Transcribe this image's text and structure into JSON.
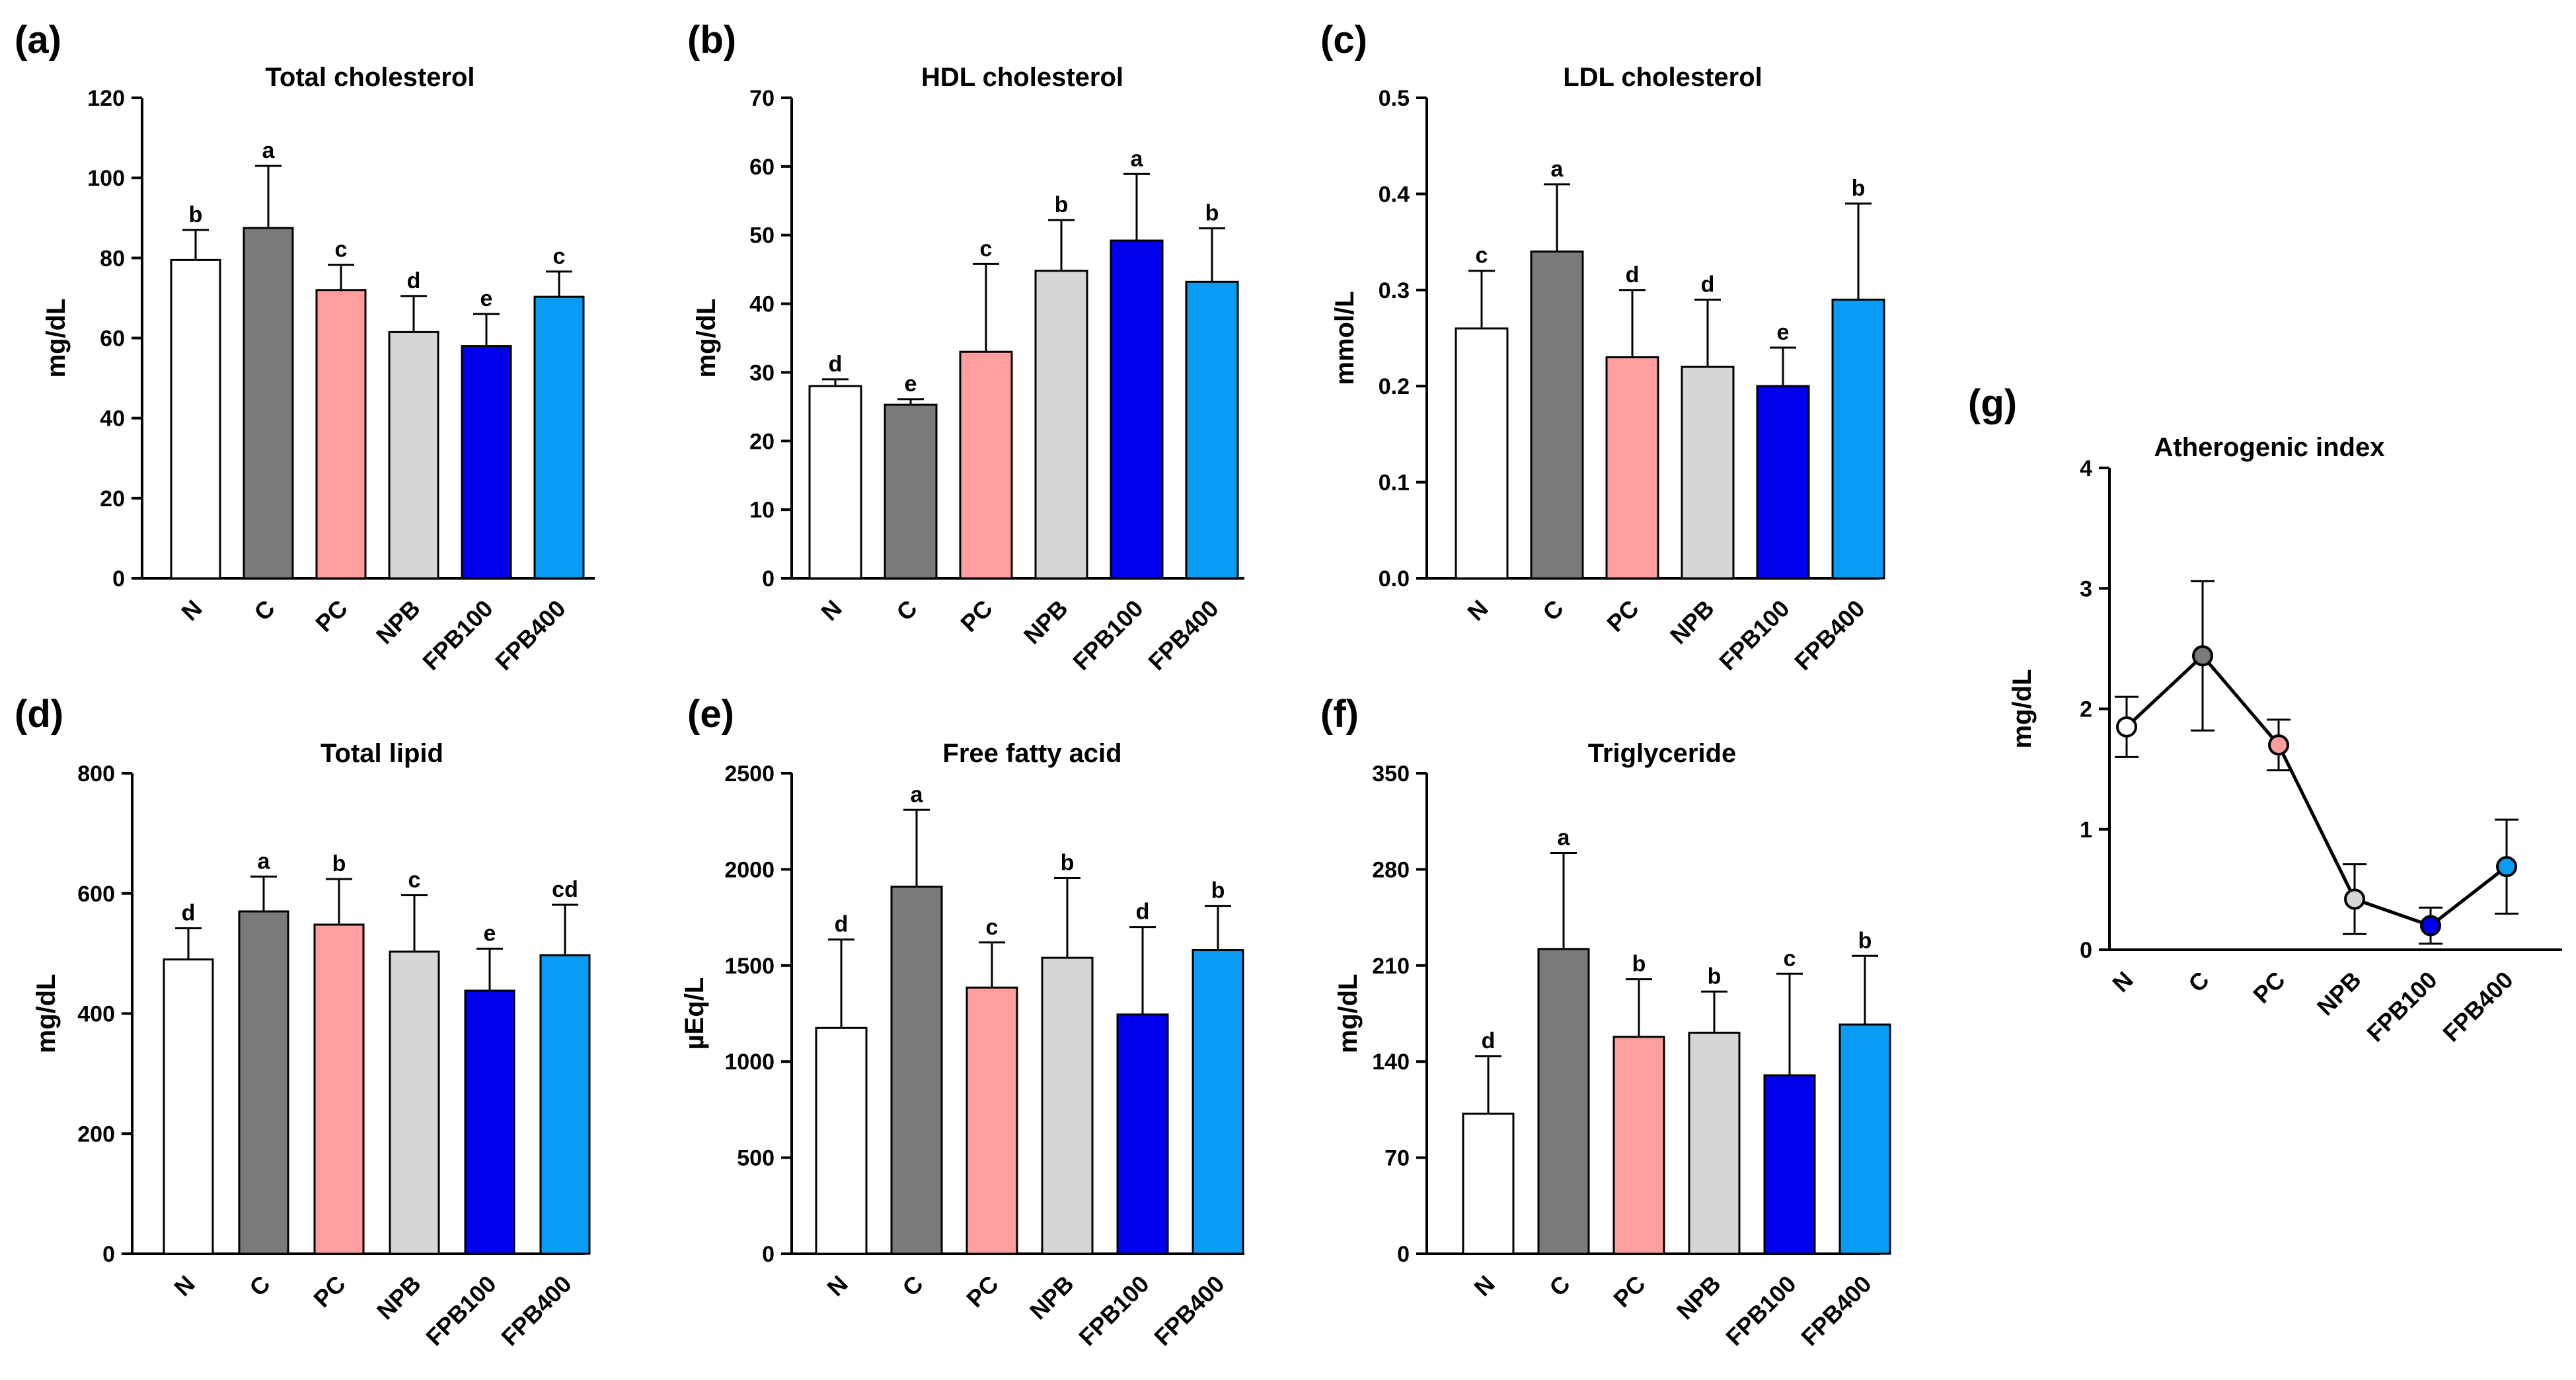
{
  "chart_data": [
    {
      "panel": "(a)",
      "type": "bar",
      "title": "Total cholesterol",
      "ylabel": "mg/dL",
      "ylim": [
        0,
        120
      ],
      "yticks": [
        0,
        20,
        40,
        60,
        80,
        100,
        120
      ],
      "categories": [
        "N",
        "C",
        "PC",
        "NPB",
        "FPB100",
        "FPB400"
      ],
      "values": [
        79.5,
        87.5,
        72,
        61.5,
        58,
        70.3
      ],
      "errors": [
        7.5,
        15.5,
        6.3,
        9,
        8,
        6.3
      ],
      "significance": [
        "b",
        "a",
        "c",
        "d",
        "e",
        "c"
      ]
    },
    {
      "panel": "(b)",
      "type": "bar",
      "title": "HDL cholesterol",
      "ylabel": "mg/dL",
      "ylim": [
        0,
        70
      ],
      "yticks": [
        0,
        10,
        20,
        30,
        40,
        50,
        60,
        70
      ],
      "categories": [
        "N",
        "C",
        "PC",
        "NPB",
        "FPB100",
        "FPB400"
      ],
      "values": [
        28,
        25.3,
        33,
        44.8,
        49.2,
        43.2
      ],
      "errors": [
        1,
        0.8,
        12.8,
        7.4,
        9.7,
        7.8
      ],
      "significance": [
        "d",
        "e",
        "c",
        "b",
        "a",
        "b"
      ]
    },
    {
      "panel": "(c)",
      "type": "bar",
      "title": "LDL cholesterol",
      "ylabel": "mmol/L",
      "ylim": [
        0,
        0.5
      ],
      "yticks": [
        "0.0",
        "0.1",
        "0.2",
        "0.3",
        "0.4",
        "0.5"
      ],
      "categories": [
        "N",
        "C",
        "PC",
        "NPB",
        "FPB100",
        "FPB400"
      ],
      "values": [
        0.26,
        0.34,
        0.23,
        0.22,
        0.2,
        0.29
      ],
      "errors": [
        0.06,
        0.07,
        0.07,
        0.07,
        0.04,
        0.1
      ],
      "significance": [
        "c",
        "a",
        "d",
        "d",
        "e",
        "b"
      ]
    },
    {
      "panel": "(d)",
      "type": "bar",
      "title": "Total lipid",
      "ylabel": "mg/dL",
      "ylim": [
        0,
        800
      ],
      "yticks": [
        0,
        200,
        400,
        600,
        800
      ],
      "categories": [
        "N",
        "C",
        "PC",
        "NPB",
        "FPB100",
        "FPB400"
      ],
      "values": [
        490,
        570,
        548,
        503,
        438,
        497
      ],
      "errors": [
        52,
        58,
        76,
        94,
        70,
        84
      ],
      "significance": [
        "d",
        "a",
        "b",
        "c",
        "e",
        "cd"
      ]
    },
    {
      "panel": "(e)",
      "type": "bar",
      "title": "Free fatty acid",
      "ylabel": "µEq/L",
      "ylim": [
        0,
        2500
      ],
      "yticks": [
        0,
        500,
        1000,
        1500,
        2000,
        2500
      ],
      "categories": [
        "N",
        "C",
        "PC",
        "NPB",
        "FPB100",
        "FPB400"
      ],
      "values": [
        1175,
        1910,
        1385,
        1540,
        1245,
        1580
      ],
      "errors": [
        460,
        400,
        235,
        415,
        455,
        230
      ],
      "significance": [
        "d",
        "a",
        "c",
        "b",
        "d",
        "b"
      ]
    },
    {
      "panel": "(f)",
      "type": "bar",
      "title": "Triglyceride",
      "ylabel": "mg/dL",
      "ylim": [
        0,
        350
      ],
      "yticks": [
        0,
        70,
        140,
        210,
        280,
        350
      ],
      "categories": [
        "N",
        "C",
        "PC",
        "NPB",
        "FPB100",
        "FPB400"
      ],
      "values": [
        102,
        222,
        158,
        161,
        130,
        167
      ],
      "errors": [
        42,
        70,
        42,
        30,
        74,
        50
      ],
      "significance": [
        "d",
        "a",
        "b",
        "b",
        "c",
        "b"
      ]
    },
    {
      "panel": "(g)",
      "type": "line",
      "title": "Atherogenic index",
      "ylabel": "mg/dL",
      "ylim": [
        0,
        4
      ],
      "yticks": [
        0,
        1,
        2,
        3,
        4
      ],
      "categories": [
        "N",
        "C",
        "PC",
        "NPB",
        "FPB100",
        "FPB400"
      ],
      "values": [
        1.85,
        2.44,
        1.7,
        0.42,
        0.2,
        0.69
      ],
      "errors": [
        0.25,
        0.62,
        0.21,
        0.29,
        0.15,
        0.39
      ]
    }
  ],
  "colors": [
    "#ffffff",
    "#7a7a7a",
    "#ff9e9e",
    "#d6d6d6",
    "#0000ee",
    "#0a9cf5"
  ]
}
